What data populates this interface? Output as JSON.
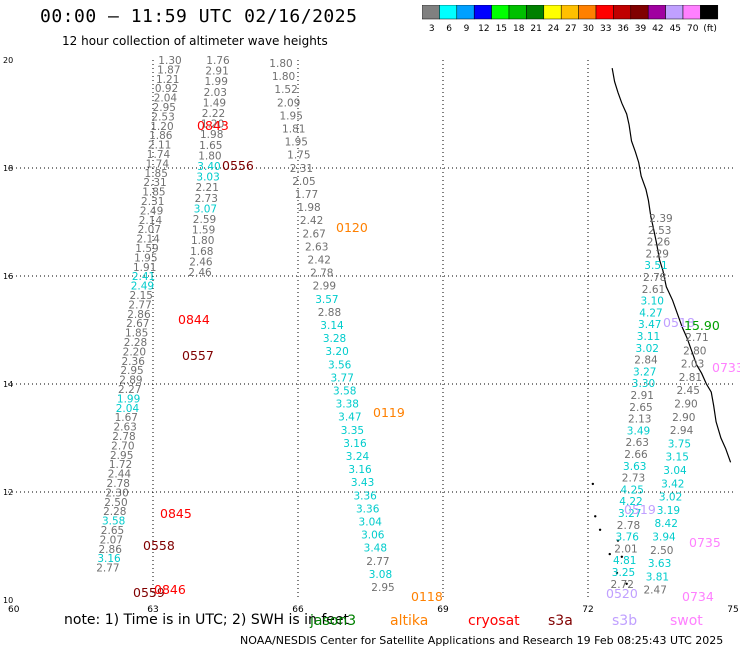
{
  "title": "00:00 – 11:59 UTC 02/16/2025",
  "subtitle": "12 hour collection of altimeter wave heights",
  "colorbar": {
    "colors": [
      "#808080",
      "#00ffff",
      "#00a0ff",
      "#0000ff",
      "#00ff00",
      "#00c000",
      "#008000",
      "#ffff00",
      "#ffc000",
      "#ff8000",
      "#ff0000",
      "#c00000",
      "#800000",
      "#a000a0",
      "#c0a0ff",
      "#ff80ff",
      "#000000"
    ],
    "labels": [
      "3",
      "6",
      "9",
      "12",
      "15",
      "18",
      "21",
      "24",
      "27",
      "30",
      "33",
      "36",
      "39",
      "42",
      "45",
      "70",
      "(ft)"
    ]
  },
  "axes": {
    "lon_range": [
      60,
      75
    ],
    "lat_range": [
      10,
      20
    ],
    "x_ticks": [
      "60",
      "63",
      "66",
      "69",
      "72",
      "75"
    ],
    "y_ticks": [
      "20",
      "18",
      "16",
      "14",
      "12",
      "10"
    ]
  },
  "note": "note: 1) Time is in UTC; 2) SWH is in feet",
  "legend": [
    {
      "name": "jason3",
      "color": "#008000"
    },
    {
      "name": "altika",
      "color": "#ff8000"
    },
    {
      "name": "cryosat",
      "color": "#ff0000"
    },
    {
      "name": "s3a",
      "color": "#800000"
    },
    {
      "name": "s3b",
      "color": "#c0a0ff"
    },
    {
      "name": "swot",
      "color": "#ff80ff"
    }
  ],
  "footer": "NOAA/NESDIS Center for Satellite Applications and Research    19 Feb 08:25:43 UTC 2025",
  "tracks": [
    {
      "name": "track-west-a",
      "color": "#808080",
      "cyan": "#00d0d0",
      "values": [
        "1.30",
        "1.87",
        "1.21",
        "0.92",
        "2.04",
        "2.95",
        "2.53",
        "1.20",
        "1.86",
        "2.11",
        "1.74",
        "1.74",
        "1.85",
        "2.31",
        "1.85",
        "2.31",
        "2.49",
        "2.14",
        "2.07",
        "2.14",
        "1.59",
        "1.95",
        "1.91",
        "2.41",
        "2.49",
        "2.15",
        "2.77",
        "2.86",
        "2.67",
        "1.85",
        "2.28",
        "2.20",
        "2.36",
        "2.95",
        "2.89",
        "2.27",
        "1.99",
        "2.04",
        "1.67",
        "2.63",
        "2.78",
        "2.70",
        "2.95",
        "1.72",
        "2.44",
        "2.78",
        "2.30",
        "2.50",
        "2.28",
        "3.58",
        "2.65",
        "2.07",
        "2.86",
        "3.16",
        "2.77"
      ],
      "cyan_idx": [
        23,
        24,
        36,
        37,
        49,
        53
      ]
    },
    {
      "name": "track-west-b",
      "color": "#808080",
      "values": [
        "1.76",
        "2.91",
        "1.99",
        "2.03",
        "1.49",
        "2.22",
        "1.20",
        "1.98",
        "1.65",
        "1.80",
        "3.40",
        "3.03",
        "2.21",
        "2.73",
        "3.07",
        "2.59",
        "1.59",
        "1.80",
        "1.68",
        "2.46",
        "2.46"
      ],
      "cyan_idx": [
        10,
        11,
        14
      ]
    },
    {
      "name": "track-mid",
      "color": "#808080",
      "values": [
        "1.80",
        "1.80",
        "1.52",
        "2.09",
        "1.95",
        "1.81",
        "1.95",
        "1.75",
        "2.31",
        "2.05",
        "1.77",
        "1.98",
        "2.42",
        "2.67",
        "2.63",
        "2.42",
        "2.78",
        "2.99",
        "3.57",
        "2.88",
        "3.14",
        "3.28",
        "3.20",
        "3.56",
        "3.77",
        "3.58",
        "3.38",
        "3.47",
        "3.35",
        "3.16",
        "3.24",
        "3.16",
        "3.43",
        "3.36",
        "3.36",
        "3.04",
        "3.06",
        "3.48",
        "2.77",
        "3.08",
        "2.95"
      ],
      "cyan_idx": [
        18,
        20,
        21,
        22,
        23,
        24,
        25,
        26,
        27,
        28,
        29,
        30,
        31,
        32,
        33,
        34,
        35,
        36,
        37,
        39
      ]
    },
    {
      "name": "track-east-a",
      "color": "#808080",
      "values": [
        "2.39",
        "2.53",
        "2.26",
        "2.29",
        "3.51",
        "2.78",
        "2.61",
        "3.10",
        "4.27",
        "3.47",
        "3.11",
        "3.02",
        "2.84",
        "3.27",
        "3.30",
        "2.91",
        "2.65",
        "2.13",
        "3.49",
        "2.63",
        "2.66",
        "3.63",
        "2.73",
        "4.25",
        "4.22",
        "3.27",
        "2.78",
        "3.76",
        "2.01",
        "4.81",
        "3.25",
        "2.72"
      ],
      "cyan_idx": [
        4,
        7,
        8,
        9,
        10,
        11,
        13,
        14,
        18,
        21,
        23,
        24,
        25,
        27,
        29,
        30
      ]
    },
    {
      "name": "track-east-b",
      "color": "#808080",
      "values": [
        "2.71",
        "2.80",
        "2.03",
        "2.81",
        "2.45",
        "2.90",
        "2.90",
        "2.94",
        "3.75",
        "3.15",
        "3.04",
        "3.42",
        "3.02",
        "3.19",
        "8.42",
        "3.94",
        "2.50",
        "3.63",
        "3.81",
        "2.47"
      ],
      "cyan_idx": [
        8,
        9,
        10,
        11,
        12,
        13,
        14,
        15,
        17,
        18
      ]
    }
  ],
  "time_labels": [
    {
      "text": "0843",
      "color": "#ff0000"
    },
    {
      "text": "0556",
      "color": "#800000"
    },
    {
      "text": "0120",
      "color": "#ff8000"
    },
    {
      "text": "0844",
      "color": "#ff0000"
    },
    {
      "text": "0557",
      "color": "#800000"
    },
    {
      "text": "0119",
      "color": "#ff8000"
    },
    {
      "text": "0845",
      "color": "#ff0000"
    },
    {
      "text": "0558",
      "color": "#800000"
    },
    {
      "text": "0559",
      "color": "#800000"
    },
    {
      "text": "0846",
      "color": "#ff0000"
    },
    {
      "text": "0118",
      "color": "#ff8000"
    },
    {
      "text": "0518",
      "color": "#c0a0ff"
    },
    {
      "text": "0519",
      "color": "#c0a0ff"
    },
    {
      "text": "0520",
      "color": "#c0a0ff"
    },
    {
      "text": "0733",
      "color": "#ff80ff"
    },
    {
      "text": "0735",
      "color": "#ff80ff"
    },
    {
      "text": "0734",
      "color": "#ff80ff"
    },
    {
      "text": "15.90",
      "color": "#00a000"
    }
  ]
}
